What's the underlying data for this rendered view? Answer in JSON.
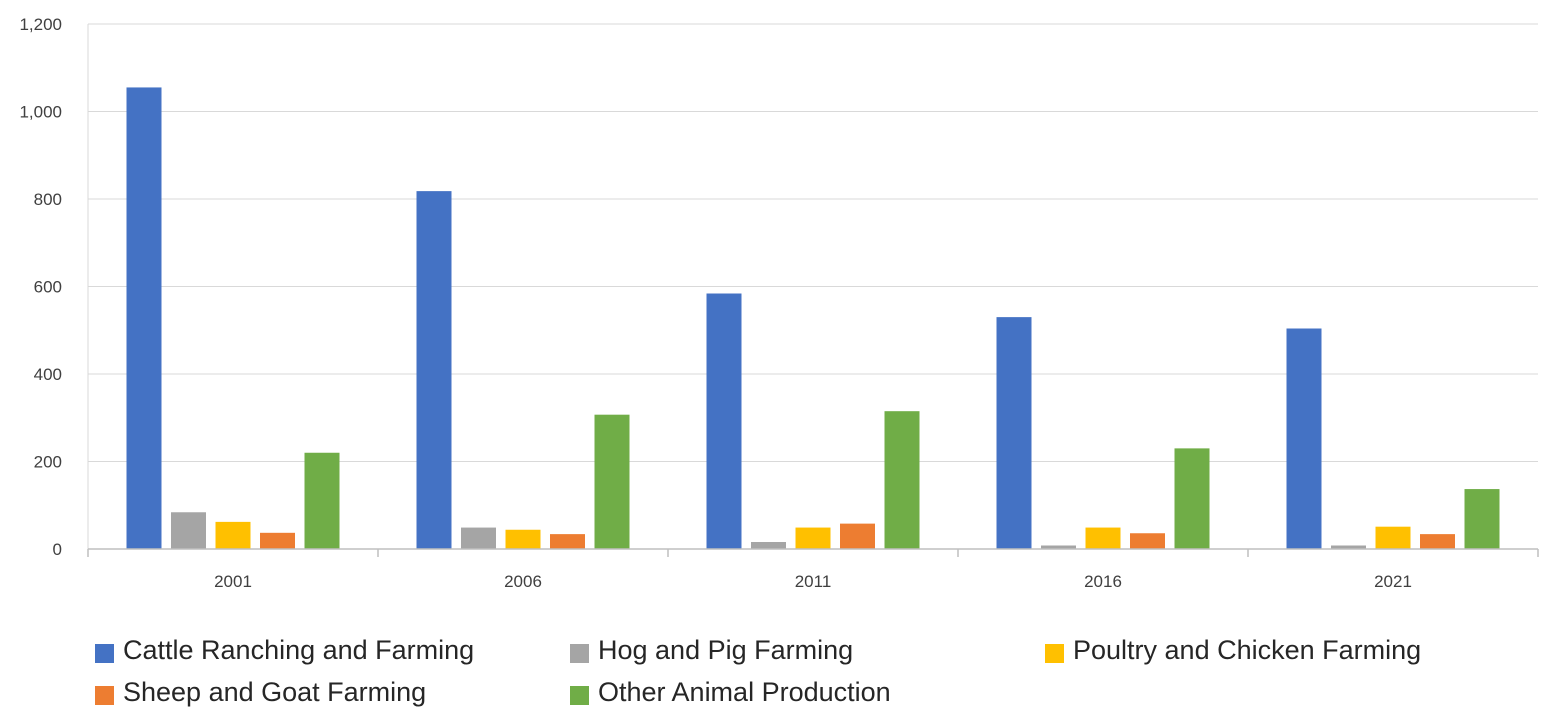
{
  "chart_data": {
    "type": "bar",
    "categories": [
      "2001",
      "2006",
      "2011",
      "2016",
      "2021"
    ],
    "series": [
      {
        "name": "Cattle Ranching and Farming",
        "color": "#4472C4",
        "values": [
          1055,
          818,
          584,
          530,
          504
        ]
      },
      {
        "name": "Hog and Pig Farming",
        "color": "#A5A5A5",
        "values": [
          84,
          49,
          16,
          8,
          8
        ]
      },
      {
        "name": "Poultry and Chicken Farming",
        "color": "#FFC000",
        "values": [
          62,
          44,
          49,
          49,
          51
        ]
      },
      {
        "name": "Sheep and Goat Farming",
        "color": "#ED7D31",
        "values": [
          37,
          34,
          58,
          36,
          34
        ]
      },
      {
        "name": "Other Animal Production",
        "color": "#70AD47",
        "values": [
          220,
          307,
          315,
          230,
          137
        ]
      }
    ],
    "yticks": [
      "0",
      "200",
      "400",
      "600",
      "800",
      "1,000",
      "1,200"
    ],
    "ylim": [
      0,
      1200
    ],
    "grid": true,
    "legend": "bottom",
    "title": "",
    "xlabel": "",
    "ylabel": ""
  }
}
